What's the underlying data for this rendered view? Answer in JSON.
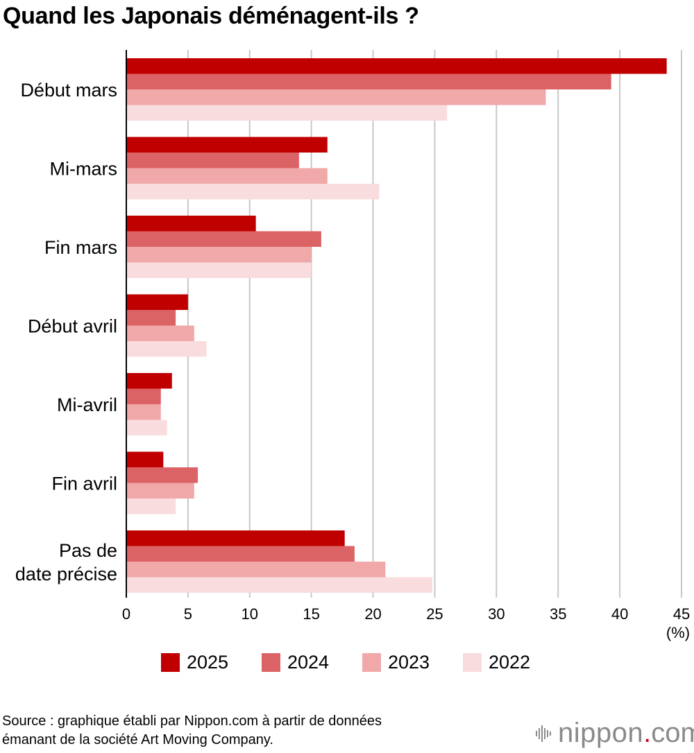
{
  "title": "Quand les Japonais déménagent-ils ?",
  "colors": {
    "2025": "#c00000",
    "2024": "#db6265",
    "2023": "#f0a8a8",
    "2022": "#f9dcdd"
  },
  "chart_data": {
    "type": "bar",
    "orientation": "horizontal",
    "categories": [
      "Début mars",
      "Mi-mars",
      "Fin mars",
      "Début avril",
      "Mi-avril",
      "Fin avril",
      "Pas de date précise"
    ],
    "series": [
      {
        "name": "2025",
        "values": [
          43.8,
          16.3,
          10.5,
          5.0,
          3.7,
          3.0,
          17.7
        ]
      },
      {
        "name": "2024",
        "values": [
          39.3,
          14.0,
          15.8,
          4.0,
          2.8,
          5.8,
          18.5
        ]
      },
      {
        "name": "2023",
        "values": [
          34.0,
          16.3,
          15.0,
          5.5,
          2.8,
          5.5,
          21.0
        ]
      },
      {
        "name": "2022",
        "values": [
          26.0,
          20.5,
          15.0,
          6.5,
          3.3,
          4.0,
          24.8
        ]
      }
    ],
    "xlim": [
      0,
      45
    ],
    "xticks": [
      0,
      5,
      10,
      15,
      20,
      25,
      30,
      35,
      40,
      45
    ],
    "xunit": "(%)",
    "grid": "vertical",
    "legend": "bottom"
  },
  "legend": [
    "2025",
    "2024",
    "2023",
    "2022"
  ],
  "source": {
    "line1": "Source : graphique établi par Nippon.com à partir de données",
    "line2": "émanant de la société Art Moving Company."
  },
  "brand": {
    "name": "nippon",
    "dot": ".",
    "suffix": "com",
    "icon": "sound-wave-icon"
  }
}
